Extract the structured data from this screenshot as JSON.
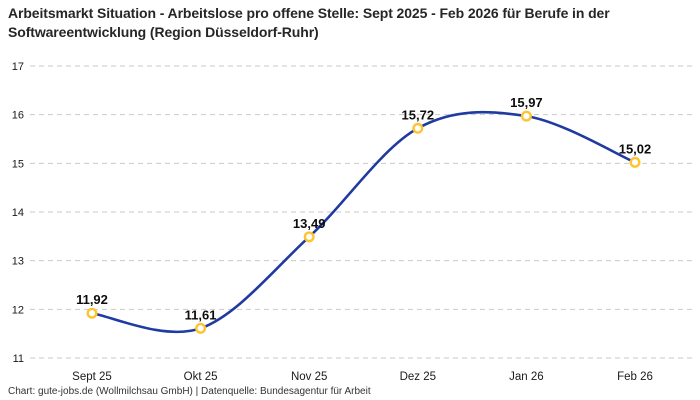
{
  "title": "Arbeitsmarkt Situation - Arbeitslose pro offene Stelle: Sept 2025 - Feb 2026 für Berufe in der Softwareentwicklung (Region Düsseldorf-Ruhr)",
  "footer": "Chart: gute-jobs.de (Wollmilchsau GmbH) | Datenquelle: Bundesagentur für Arbeit",
  "colors": {
    "line": "#1f3aa0",
    "marker_stroke": "#fec430",
    "marker_fill": "#ffffff",
    "grid": "#c9c9c9",
    "axis_text": "#1a1a1a",
    "label_text": "#0d0d0d"
  },
  "chart_data": {
    "type": "line",
    "title": "Arbeitsmarkt Situation - Arbeitslose pro offene Stelle: Sept 2025 - Feb 2026 für Berufe in der Softwareentwicklung (Region Düsseldorf-Ruhr)",
    "categories": [
      "Sept 25",
      "Okt 25",
      "Nov 25",
      "Dez 25",
      "Jan 26",
      "Feb 26"
    ],
    "values": [
      11.92,
      11.61,
      13.49,
      15.72,
      15.97,
      15.02
    ],
    "point_labels": [
      "11,92",
      "11,61",
      "13,49",
      "15,72",
      "15,97",
      "15,02"
    ],
    "xlabel": "",
    "ylabel": "",
    "ylim": [
      11,
      17
    ],
    "yticks": [
      11,
      12,
      13,
      14,
      15,
      16,
      17
    ],
    "grid": "horizontal-dashed",
    "legend": "none",
    "line_style": "smooth",
    "marker": "open-circle"
  }
}
